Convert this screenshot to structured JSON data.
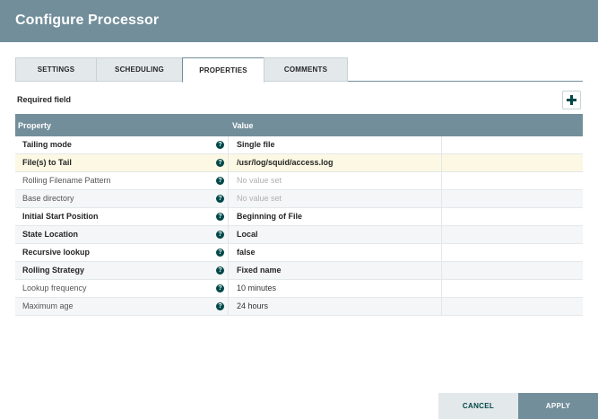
{
  "dialog": {
    "title": "Configure Processor"
  },
  "tabs": [
    {
      "label": "SETTINGS",
      "active": false
    },
    {
      "label": "SCHEDULING",
      "active": false
    },
    {
      "label": "PROPERTIES",
      "active": true
    },
    {
      "label": "COMMENTS",
      "active": false
    }
  ],
  "properties": {
    "required_label": "Required field",
    "add_icon": "plus-icon",
    "columns": {
      "property": "Property",
      "value": "Value"
    },
    "info_icon": "question-circle-icon",
    "rows": [
      {
        "name": "Tailing mode",
        "value": "Single file",
        "required": true,
        "set": true
      },
      {
        "name": "File(s) to Tail",
        "value": "/usr/log/squid/access.log",
        "required": true,
        "set": true,
        "selected": true
      },
      {
        "name": "Rolling Filename Pattern",
        "value": "No value set",
        "required": false,
        "set": false
      },
      {
        "name": "Base directory",
        "value": "No value set",
        "required": false,
        "set": false
      },
      {
        "name": "Initial Start Position",
        "value": "Beginning of File",
        "required": true,
        "set": true
      },
      {
        "name": "State Location",
        "value": "Local",
        "required": true,
        "set": true
      },
      {
        "name": "Recursive lookup",
        "value": "false",
        "required": true,
        "set": true
      },
      {
        "name": "Rolling Strategy",
        "value": "Fixed name",
        "required": true,
        "set": true
      },
      {
        "name": "Lookup frequency",
        "value": "10 minutes",
        "required": false,
        "set": true
      },
      {
        "name": "Maximum age",
        "value": "24 hours",
        "required": false,
        "set": true
      }
    ]
  },
  "buttons": {
    "cancel": "CANCEL",
    "apply": "APPLY"
  },
  "colors": {
    "header": "#728e9b",
    "accent_dark": "#004849",
    "selected_row": "#fcf8e3",
    "alt_row": "#f4f6f7"
  }
}
